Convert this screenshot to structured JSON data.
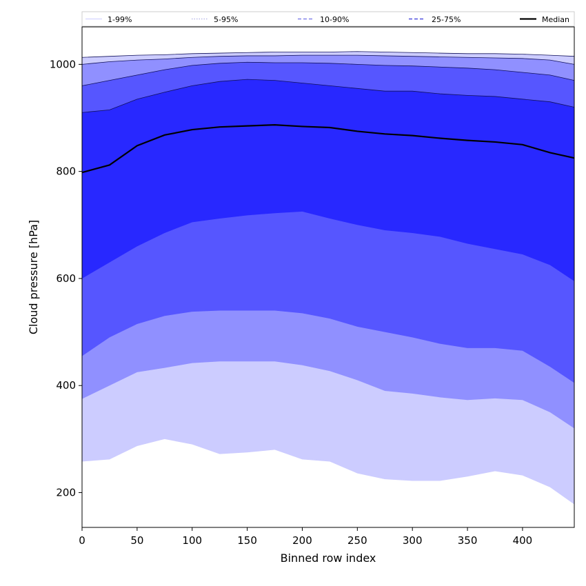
{
  "chart_data": {
    "type": "area",
    "title": "",
    "xlabel": "Binned row index",
    "ylabel": "Cloud pressure [hPa]",
    "xlim": [
      0,
      447
    ],
    "ylim": [
      135,
      1070
    ],
    "x_ticks": [
      0,
      50,
      100,
      150,
      200,
      250,
      300,
      350,
      400
    ],
    "y_ticks": [
      200,
      400,
      600,
      800,
      1000
    ],
    "grid": false,
    "legend_position": "top, horizontal above plot",
    "x": [
      0,
      25,
      50,
      75,
      100,
      125,
      150,
      175,
      200,
      225,
      250,
      275,
      300,
      325,
      350,
      375,
      400,
      425,
      447
    ],
    "bands": [
      {
        "name": "1-99%",
        "color": "#ccccff",
        "line_color": "#ccccff",
        "line_style": "solid",
        "lower": [
          258,
          262,
          287,
          300,
          290,
          272,
          275,
          280,
          262,
          258,
          236,
          225,
          222,
          222,
          230,
          240,
          232,
          210,
          178
        ],
        "upper": [
          1013,
          1015,
          1017,
          1018,
          1020,
          1021,
          1022,
          1023,
          1023,
          1023,
          1024,
          1023,
          1022,
          1021,
          1020,
          1020,
          1019,
          1017,
          1015
        ]
      },
      {
        "name": "5-95%",
        "color": "#9090ff",
        "line_color": "#a0a0e0",
        "line_style": "dotted",
        "lower": [
          375,
          400,
          425,
          433,
          442,
          445,
          445,
          445,
          438,
          427,
          410,
          390,
          385,
          378,
          373,
          376,
          373,
          350,
          320
        ],
        "upper": [
          1000,
          1005,
          1008,
          1010,
          1013,
          1015,
          1016,
          1016,
          1017,
          1017,
          1017,
          1016,
          1015,
          1014,
          1013,
          1012,
          1011,
          1008,
          1000
        ]
      },
      {
        "name": "10-90%",
        "color": "#5656ff",
        "line_color": "#7070e8",
        "line_style": "dashed",
        "lower": [
          455,
          490,
          515,
          530,
          538,
          540,
          540,
          540,
          535,
          525,
          510,
          500,
          490,
          478,
          470,
          470,
          465,
          435,
          405
        ],
        "upper": [
          960,
          970,
          980,
          990,
          998,
          1002,
          1004,
          1003,
          1003,
          1002,
          1000,
          998,
          997,
          995,
          993,
          990,
          985,
          980,
          970
        ]
      },
      {
        "name": "25-75%",
        "color": "#2828ff",
        "line_color": "#5050e0",
        "line_style": "dashed",
        "lower": [
          600,
          630,
          660,
          685,
          705,
          712,
          718,
          722,
          725,
          712,
          700,
          690,
          685,
          678,
          665,
          655,
          645,
          625,
          595
        ],
        "upper": [
          910,
          915,
          935,
          948,
          960,
          968,
          972,
          970,
          965,
          960,
          955,
          950,
          950,
          945,
          942,
          940,
          935,
          930,
          920
        ]
      }
    ],
    "series": [
      {
        "name": "Median",
        "color": "#000000",
        "values": [
          798,
          812,
          848,
          868,
          878,
          883,
          885,
          887,
          884,
          882,
          875,
          870,
          867,
          862,
          858,
          855,
          850,
          835,
          825
        ]
      }
    ],
    "legend": [
      "1-99%",
      "5-95%",
      "10-90%",
      "25-75%",
      "Median"
    ]
  }
}
